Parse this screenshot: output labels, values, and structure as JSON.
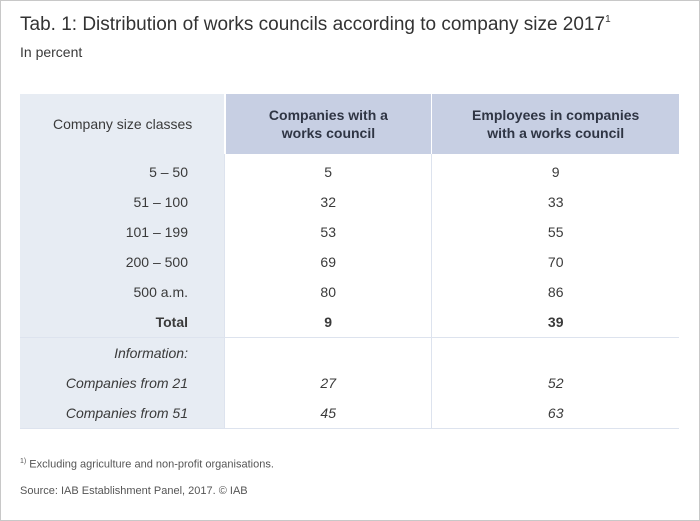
{
  "title": "Tab. 1: Distribution of works councils according to company size 2017",
  "title_footnote_mark": "1",
  "subtitle": "In percent",
  "table": {
    "headers": [
      "Company size classes",
      "Companies with a works council",
      "Employees in companies with a works council"
    ],
    "rows": [
      [
        "5 – 50",
        "5",
        "9"
      ],
      [
        "51 – 100",
        "32",
        "33"
      ],
      [
        "101 – 199",
        "53",
        "55"
      ],
      [
        "200 – 500",
        "69",
        "70"
      ],
      [
        "500 a.m.",
        "80",
        "86"
      ],
      [
        "Total",
        "9",
        "39"
      ]
    ],
    "info_label": "Information:",
    "info_rows": [
      [
        "Companies from 21",
        "27",
        "52"
      ],
      [
        "Companies from 51",
        "45",
        "63"
      ]
    ]
  },
  "footnote_mark": "1)",
  "footnote": "Excluding agriculture and non-profit organisations.",
  "source": "Source: IAB Establishment Panel, 2017. © IAB",
  "colors": {
    "header_blue": "#c7cfe3",
    "label_column": "#e7ecf3",
    "text": "#3a3a3a"
  }
}
